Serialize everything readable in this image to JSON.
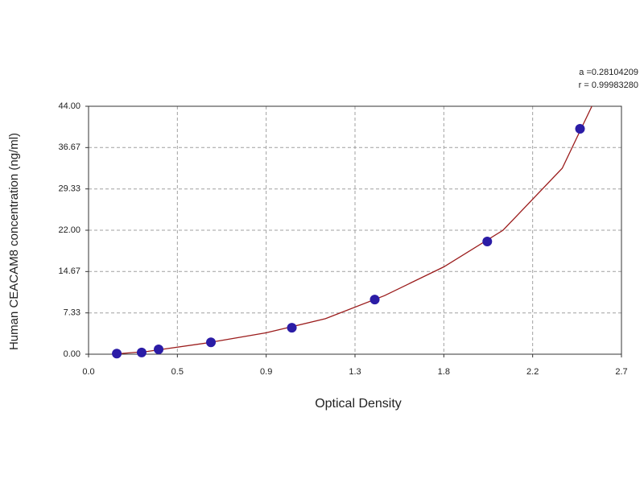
{
  "chart_data": {
    "type": "scatter",
    "x_label": "Optical Density",
    "y_label": "Human CEACAM8 concentration (ng/ml)",
    "annotations": [
      "a =0.28104209",
      "r = 0.99983280"
    ],
    "xlim": [
      0,
      2.7
    ],
    "xticks": [
      {
        "value": 0,
        "label": "0.0"
      },
      {
        "value": 0.45,
        "label": "0.5"
      },
      0.9,
      {
        "value": 1.35,
        "label": "1.3"
      },
      1.8,
      {
        "value": 2.25,
        "label": "2.2"
      },
      2.7
    ],
    "ylim": [
      0,
      44
    ],
    "yticks": [
      {
        "value": 0,
        "label": "0.00"
      },
      {
        "value": 7.33,
        "label": "7.33"
      },
      {
        "value": 14.67,
        "label": "14.67"
      },
      {
        "value": 22,
        "label": "22.00"
      },
      {
        "value": 29.33,
        "label": "29.33"
      },
      {
        "value": 36.67,
        "label": "36.67"
      },
      {
        "value": 44,
        "label": "44.00"
      }
    ],
    "grid": true,
    "points": {
      "color": "#2b1ca6",
      "x": [
        0.143,
        0.269,
        0.355,
        0.62,
        1.03,
        1.45,
        2.02,
        2.49
      ],
      "y": [
        0.1,
        0.3,
        0.86,
        2.1,
        4.7,
        9.7,
        20,
        40
      ]
    },
    "fit": {
      "color": "#9b1c1c",
      "x": [
        0.12,
        0.3,
        0.6,
        0.9,
        1.2,
        1.5,
        1.8,
        2.1,
        2.4,
        2.55
      ],
      "y": [
        0,
        0.5,
        2.0,
        3.8,
        6.3,
        10.4,
        15.5,
        22,
        33,
        44
      ]
    }
  }
}
